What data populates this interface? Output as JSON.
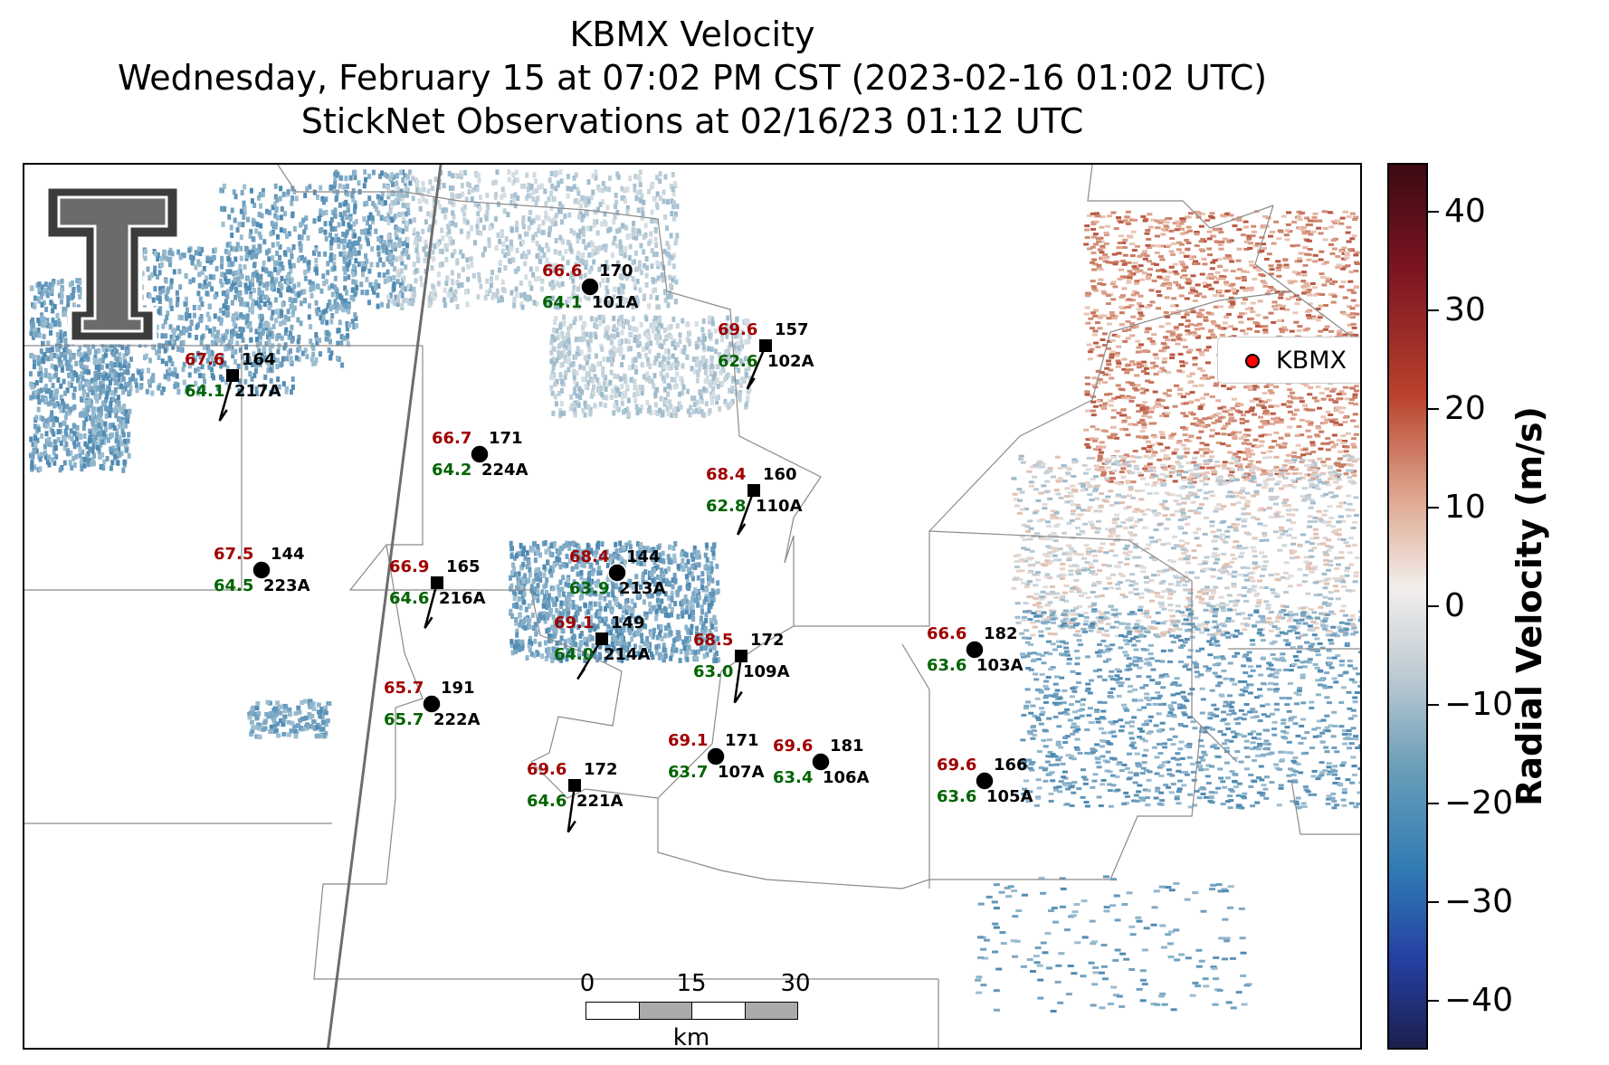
{
  "title": {
    "line1": "KBMX Velocity",
    "line2": "Wednesday, February 15 at 07:02 PM CST (2023-02-16 01:02 UTC)",
    "line3": "StickNet Observations at 02/16/23 01:12 UTC"
  },
  "legend": {
    "label": "KBMX",
    "marker_color": "#ff0000"
  },
  "colorbar": {
    "label": "Radial Velocity (m/s)",
    "ticks": [
      "40",
      "30",
      "20",
      "10",
      "0",
      "−10",
      "−20",
      "−30",
      "−40"
    ],
    "range": [
      -45,
      45
    ]
  },
  "scalebar": {
    "labels": [
      "0",
      "15",
      "30"
    ],
    "unit": "km"
  },
  "colors": {
    "temperature": "#a00000",
    "dewpoint": "#006400",
    "station_text": "#000000"
  },
  "stations": [
    {
      "id": "101A",
      "t": "66.6",
      "td": "64.1",
      "dir": "170",
      "marker": "circle"
    },
    {
      "id": "102A",
      "t": "69.6",
      "td": "62.6",
      "dir": "157",
      "marker": "square"
    },
    {
      "id": "217A",
      "t": "67.6",
      "td": "64.1",
      "dir": "164",
      "marker": "square"
    },
    {
      "id": "224A",
      "t": "66.7",
      "td": "64.2",
      "dir": "171",
      "marker": "circle"
    },
    {
      "id": "110A",
      "t": "68.4",
      "td": "62.8",
      "dir": "160",
      "marker": "square"
    },
    {
      "id": "223A",
      "t": "67.5",
      "td": "64.5",
      "dir": "144",
      "marker": "circle"
    },
    {
      "id": "216A",
      "t": "66.9",
      "td": "64.6",
      "dir": "165",
      "marker": "square"
    },
    {
      "id": "213A",
      "t": "68.4",
      "td": "63.9",
      "dir": "144",
      "marker": "circle"
    },
    {
      "id": "214A",
      "t": "69.1",
      "td": "64.0",
      "dir": "149",
      "marker": "square"
    },
    {
      "id": "109A",
      "t": "68.5",
      "td": "63.0",
      "dir": "172",
      "marker": "square"
    },
    {
      "id": "103A",
      "t": "66.6",
      "td": "63.6",
      "dir": "182",
      "marker": "circle"
    },
    {
      "id": "222A",
      "t": "65.7",
      "td": "65.7",
      "dir": "191",
      "marker": "circle"
    },
    {
      "id": "107A",
      "t": "69.1",
      "td": "63.7",
      "dir": "171",
      "marker": "circle"
    },
    {
      "id": "106A",
      "t": "69.6",
      "td": "63.4",
      "dir": "181",
      "marker": "circle"
    },
    {
      "id": "221A",
      "t": "69.6",
      "td": "64.6",
      "dir": "172",
      "marker": "square"
    },
    {
      "id": "105A",
      "t": "69.6",
      "td": "63.6",
      "dir": "166",
      "marker": "circle"
    }
  ]
}
